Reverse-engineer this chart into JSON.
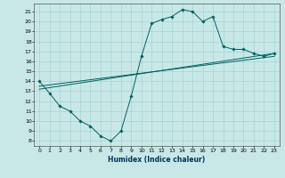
{
  "xlabel": "Humidex (Indice chaleur)",
  "xlim": [
    -0.5,
    23.5
  ],
  "ylim": [
    7.5,
    21.8
  ],
  "xticks": [
    0,
    1,
    2,
    3,
    4,
    5,
    6,
    7,
    8,
    9,
    10,
    11,
    12,
    13,
    14,
    15,
    16,
    17,
    18,
    19,
    20,
    21,
    22,
    23
  ],
  "yticks": [
    8,
    9,
    10,
    11,
    12,
    13,
    14,
    15,
    16,
    17,
    18,
    19,
    20,
    21
  ],
  "bg_color": "#c8e8e8",
  "line_color": "#006060",
  "grid_color": "#a0cccc",
  "main_x": [
    0,
    1,
    2,
    3,
    4,
    5,
    6,
    7,
    8,
    9,
    10,
    11,
    12,
    13,
    14,
    15,
    16,
    17,
    18,
    19,
    20,
    21,
    22,
    23
  ],
  "main_y": [
    14.0,
    12.8,
    11.5,
    11.0,
    10.0,
    9.5,
    8.5,
    8.0,
    9.0,
    12.5,
    16.5,
    19.8,
    20.2,
    20.5,
    21.2,
    21.0,
    20.0,
    20.5,
    17.5,
    17.2,
    17.2,
    16.8,
    16.5,
    16.8
  ],
  "line2_x": [
    0,
    23
  ],
  "line2_y": [
    13.5,
    16.5
  ],
  "line3_x": [
    0,
    23
  ],
  "line3_y": [
    13.2,
    16.8
  ]
}
